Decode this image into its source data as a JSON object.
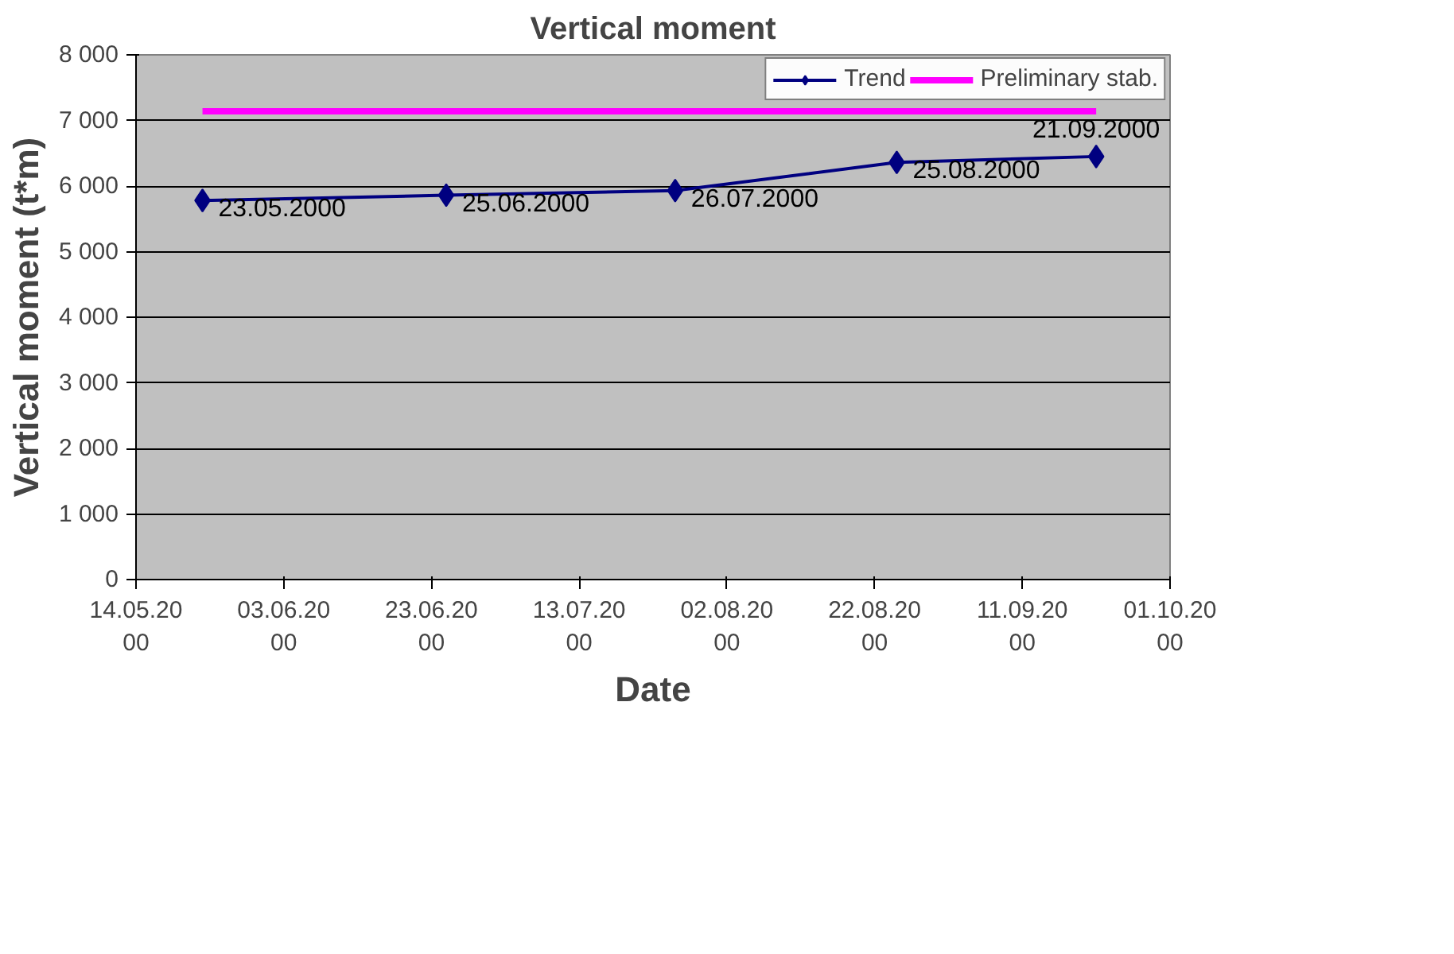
{
  "chart_data": {
    "type": "line",
    "title": "Vertical moment",
    "xlabel": "Date",
    "ylabel": "Vertical moment (t*m)",
    "x": [
      "2000-05-23",
      "2000-06-25",
      "2000-07-26",
      "2000-08-25",
      "2000-09-21"
    ],
    "series": [
      {
        "name": "Trend",
        "color": "#000080",
        "values": [
          5780,
          5860,
          5930,
          6360,
          6450
        ],
        "marker": "diamond"
      },
      {
        "name": "Preliminary stab.",
        "color": "#ff00ff",
        "x": [
          "2000-05-23",
          "2000-09-21"
        ],
        "values": [
          7140,
          7140
        ],
        "marker": "none"
      }
    ],
    "annotations": [
      {
        "text": "23.05.2000",
        "x": "2000-05-23",
        "y": 5780
      },
      {
        "text": "25.06.2000",
        "x": "2000-06-25",
        "y": 5860
      },
      {
        "text": "26.07.2000",
        "x": "2000-07-26",
        "y": 5930
      },
      {
        "text": "25.08.2000",
        "x": "2000-08-25",
        "y": 6360
      },
      {
        "text": "21.09.2000",
        "x": "2000-09-21",
        "y": 6450
      }
    ],
    "xlim": [
      "2000-05-14",
      "2000-10-01"
    ],
    "xticks": [
      {
        "value": "2000-05-14",
        "label": "14.05.2000"
      },
      {
        "value": "2000-06-03",
        "label": "03.06.2000"
      },
      {
        "value": "2000-06-23",
        "label": "23.06.2000"
      },
      {
        "value": "2000-07-13",
        "label": "13.07.2000"
      },
      {
        "value": "2000-08-02",
        "label": "02.08.2000"
      },
      {
        "value": "2000-08-22",
        "label": "22.08.2000"
      },
      {
        "value": "2000-09-11",
        "label": "11.09.2000"
      },
      {
        "value": "2000-10-01",
        "label": "01.10.2000"
      }
    ],
    "ylim": [
      0,
      8000
    ],
    "yticks": [
      {
        "value": 0,
        "label": "0"
      },
      {
        "value": 1000,
        "label": "1 000"
      },
      {
        "value": 2000,
        "label": "2 000"
      },
      {
        "value": 3000,
        "label": "3 000"
      },
      {
        "value": 4000,
        "label": "4 000"
      },
      {
        "value": 5000,
        "label": "5 000"
      },
      {
        "value": 6000,
        "label": "6 000"
      },
      {
        "value": 7000,
        "label": "7 000"
      },
      {
        "value": 8000,
        "label": "8 000"
      }
    ],
    "grid": "y",
    "legend": "top right"
  }
}
